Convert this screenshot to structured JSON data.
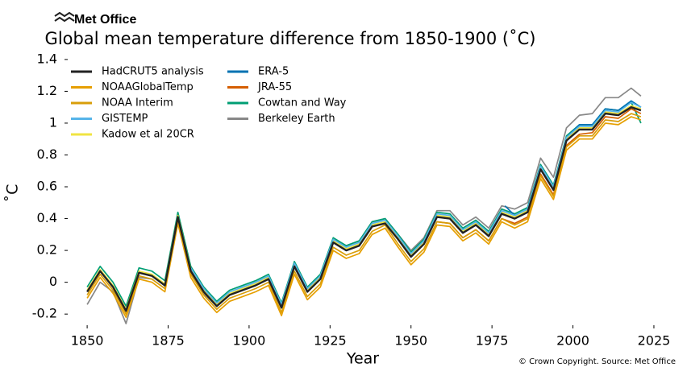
{
  "chart_data": {
    "type": "line",
    "brand": "Met Office",
    "title": "Global mean temperature difference from 1850-1900 (˚C)",
    "x_label": "Year",
    "y_label": "˚C",
    "source": "© Crown Copyright. Source: Met Office",
    "xlim": [
      1844,
      2028
    ],
    "xticks": [
      1850,
      1875,
      1900,
      1925,
      1950,
      1975,
      2000,
      2025
    ],
    "ylim": [
      -0.27,
      1.45
    ],
    "yticks": [
      -0.2,
      0.0,
      0.2,
      0.4,
      0.6,
      0.8,
      1.0,
      1.2,
      1.4
    ],
    "grid": false,
    "legend": "upper left",
    "series": [
      {
        "name": "HadCRUT5 analysis",
        "color": "#222222",
        "x": [
          1850,
          1854,
          1858,
          1862,
          1866,
          1870,
          1874,
          1878,
          1882,
          1886,
          1890,
          1894,
          1898,
          1902,
          1906,
          1910,
          1914,
          1918,
          1922,
          1926,
          1930,
          1934,
          1938,
          1942,
          1946,
          1950,
          1954,
          1958,
          1962,
          1966,
          1970,
          1974,
          1978,
          1982,
          1986,
          1990,
          1994,
          1998,
          2002,
          2006,
          2010,
          2014,
          2018,
          2021
        ],
        "values": [
          -0.06,
          0.07,
          -0.03,
          -0.18,
          0.06,
          0.04,
          -0.02,
          0.41,
          0.07,
          -0.06,
          -0.15,
          -0.08,
          -0.05,
          -0.02,
          0.02,
          -0.16,
          0.1,
          -0.06,
          0.02,
          0.25,
          0.2,
          0.23,
          0.35,
          0.37,
          0.27,
          0.16,
          0.24,
          0.41,
          0.4,
          0.31,
          0.36,
          0.29,
          0.43,
          0.4,
          0.44,
          0.71,
          0.58,
          0.89,
          0.96,
          0.96,
          1.06,
          1.05,
          1.1,
          1.08
        ]
      },
      {
        "name": "NOAAGlobalTemp",
        "color": "#E69F00",
        "x": [
          1850,
          1854,
          1858,
          1862,
          1866,
          1870,
          1874,
          1878,
          1882,
          1886,
          1890,
          1894,
          1898,
          1902,
          1906,
          1910,
          1914,
          1918,
          1922,
          1926,
          1930,
          1934,
          1938,
          1942,
          1946,
          1950,
          1954,
          1958,
          1962,
          1966,
          1970,
          1974,
          1978,
          1982,
          1986,
          1990,
          1994,
          1998,
          2002,
          2006,
          2010,
          2014,
          2018,
          2021
        ],
        "values": [
          -0.1,
          0.03,
          -0.07,
          -0.22,
          0.02,
          0.0,
          -0.06,
          0.37,
          0.03,
          -0.1,
          -0.19,
          -0.12,
          -0.09,
          -0.06,
          -0.02,
          -0.21,
          0.05,
          -0.11,
          -0.03,
          0.2,
          0.15,
          0.18,
          0.3,
          0.34,
          0.22,
          0.11,
          0.19,
          0.36,
          0.35,
          0.26,
          0.31,
          0.24,
          0.38,
          0.34,
          0.38,
          0.65,
          0.52,
          0.83,
          0.9,
          0.9,
          1.0,
          0.99,
          1.04,
          1.02
        ]
      },
      {
        "name": "NOAA Interim",
        "color": "#D89E0A",
        "x": [
          1850,
          1854,
          1858,
          1862,
          1866,
          1870,
          1874,
          1878,
          1882,
          1886,
          1890,
          1894,
          1898,
          1902,
          1906,
          1910,
          1914,
          1918,
          1922,
          1926,
          1930,
          1934,
          1938,
          1942,
          1946,
          1950,
          1954,
          1958,
          1962,
          1966,
          1970,
          1974,
          1978,
          1982,
          1986,
          1990,
          1994,
          1998,
          2002,
          2006,
          2010,
          2014,
          2018,
          2021
        ],
        "values": [
          -0.08,
          0.05,
          -0.05,
          -0.2,
          0.04,
          0.02,
          -0.04,
          0.39,
          0.05,
          -0.08,
          -0.17,
          -0.1,
          -0.07,
          -0.04,
          0.0,
          -0.19,
          0.07,
          -0.09,
          -0.01,
          0.22,
          0.17,
          0.2,
          0.32,
          0.36,
          0.24,
          0.13,
          0.21,
          0.38,
          0.37,
          0.28,
          0.33,
          0.26,
          0.4,
          0.36,
          0.4,
          0.67,
          0.54,
          0.85,
          0.92,
          0.92,
          1.02,
          1.01,
          1.06,
          1.04
        ]
      },
      {
        "name": "GISTEMP",
        "color": "#56B4E9",
        "x": [
          1882,
          1886,
          1890,
          1894,
          1898,
          1902,
          1906,
          1910,
          1914,
          1918,
          1922,
          1926,
          1930,
          1934,
          1938,
          1942,
          1946,
          1950,
          1954,
          1958,
          1962,
          1966,
          1970,
          1974,
          1978,
          1982,
          1986,
          1990,
          1994,
          1998,
          2002,
          2006,
          2010,
          2014,
          2018,
          2021
        ],
        "values": [
          0.09,
          -0.04,
          -0.13,
          -0.06,
          -0.03,
          0.0,
          0.04,
          -0.14,
          0.12,
          -0.04,
          0.04,
          0.27,
          0.22,
          0.25,
          0.37,
          0.39,
          0.29,
          0.18,
          0.26,
          0.43,
          0.42,
          0.33,
          0.38,
          0.31,
          0.45,
          0.42,
          0.46,
          0.73,
          0.6,
          0.91,
          0.98,
          0.98,
          1.08,
          1.07,
          1.13,
          1.1
        ]
      },
      {
        "name": "Kadow et al 20CR",
        "color": "#F0E442",
        "x": [
          1850,
          1854,
          1858,
          1862,
          1866,
          1870,
          1874,
          1878,
          1882,
          1886,
          1890,
          1894,
          1898,
          1902,
          1906,
          1910,
          1914,
          1918,
          1922,
          1926,
          1930,
          1934,
          1938,
          1942,
          1946,
          1950,
          1954,
          1958,
          1962,
          1966,
          1970,
          1974,
          1978,
          1982,
          1986,
          1990,
          1994,
          1998,
          2002,
          2006,
          2010,
          2014,
          2018,
          2021
        ],
        "values": [
          -0.05,
          0.08,
          -0.02,
          -0.17,
          0.07,
          0.05,
          -0.01,
          0.42,
          0.08,
          -0.05,
          -0.14,
          -0.07,
          -0.04,
          -0.01,
          0.03,
          -0.15,
          0.11,
          -0.05,
          0.03,
          0.26,
          0.21,
          0.24,
          0.36,
          0.38,
          0.28,
          0.17,
          0.25,
          0.42,
          0.41,
          0.32,
          0.37,
          0.3,
          0.44,
          0.41,
          0.45,
          0.72,
          0.59,
          0.9,
          0.97,
          0.97,
          1.07,
          1.06,
          1.11,
          1.09
        ]
      },
      {
        "name": "ERA-5",
        "color": "#0072B2",
        "x": [
          1979,
          1982,
          1986,
          1990,
          1994,
          1998,
          2002,
          2006,
          2010,
          2014,
          2018,
          2021
        ],
        "values": [
          0.48,
          0.42,
          0.46,
          0.73,
          0.6,
          0.91,
          0.99,
          0.99,
          1.09,
          1.08,
          1.14,
          1.1
        ]
      },
      {
        "name": "JRA-55",
        "color": "#D55E00",
        "x": [
          1958,
          1962,
          1966,
          1970,
          1974,
          1978,
          1982,
          1986,
          1990,
          1994,
          1998,
          2002,
          2006,
          2010,
          2014,
          2018,
          2021
        ],
        "values": [
          0.38,
          0.37,
          0.28,
          0.33,
          0.26,
          0.4,
          0.37,
          0.41,
          0.68,
          0.55,
          0.86,
          0.93,
          0.94,
          1.04,
          1.03,
          1.09,
          1.06
        ]
      },
      {
        "name": "Cowtan and Way",
        "color": "#009E73",
        "x": [
          1850,
          1854,
          1858,
          1862,
          1866,
          1870,
          1874,
          1878,
          1882,
          1886,
          1890,
          1894,
          1898,
          1902,
          1906,
          1910,
          1914,
          1918,
          1922,
          1926,
          1930,
          1934,
          1938,
          1942,
          1946,
          1950,
          1954,
          1958,
          1962,
          1966,
          1970,
          1974,
          1978,
          1982,
          1986,
          1990,
          1994,
          1998,
          2002,
          2006,
          2010,
          2014,
          2018,
          2021
        ],
        "values": [
          -0.03,
          0.1,
          0.0,
          -0.15,
          0.09,
          0.07,
          0.01,
          0.44,
          0.1,
          -0.03,
          -0.12,
          -0.05,
          -0.02,
          0.01,
          0.05,
          -0.13,
          0.13,
          -0.03,
          0.05,
          0.28,
          0.23,
          0.26,
          0.38,
          0.4,
          0.3,
          0.19,
          0.27,
          0.44,
          0.43,
          0.34,
          0.39,
          0.32,
          0.46,
          0.43,
          0.47,
          0.74,
          0.61,
          0.92,
          0.99,
          0.99,
          1.09,
          1.08,
          1.13,
          1.0
        ]
      },
      {
        "name": "Berkeley Earth",
        "color": "#888888",
        "x": [
          1850,
          1854,
          1858,
          1862,
          1866,
          1870,
          1874,
          1878,
          1882,
          1886,
          1890,
          1894,
          1898,
          1902,
          1906,
          1910,
          1914,
          1918,
          1922,
          1926,
          1930,
          1934,
          1938,
          1942,
          1946,
          1950,
          1954,
          1958,
          1962,
          1966,
          1970,
          1974,
          1978,
          1982,
          1986,
          1990,
          1994,
          1998,
          2002,
          2006,
          2010,
          2014,
          2018,
          2021
        ],
        "values": [
          -0.14,
          0.0,
          -0.06,
          -0.26,
          0.03,
          0.02,
          -0.04,
          0.4,
          0.06,
          -0.07,
          -0.15,
          -0.08,
          -0.04,
          -0.01,
          0.03,
          -0.15,
          0.12,
          -0.04,
          0.04,
          0.27,
          0.23,
          0.26,
          0.38,
          0.4,
          0.3,
          0.2,
          0.28,
          0.45,
          0.45,
          0.36,
          0.41,
          0.34,
          0.48,
          0.46,
          0.5,
          0.78,
          0.66,
          0.97,
          1.05,
          1.06,
          1.16,
          1.16,
          1.22,
          1.17
        ]
      }
    ]
  }
}
